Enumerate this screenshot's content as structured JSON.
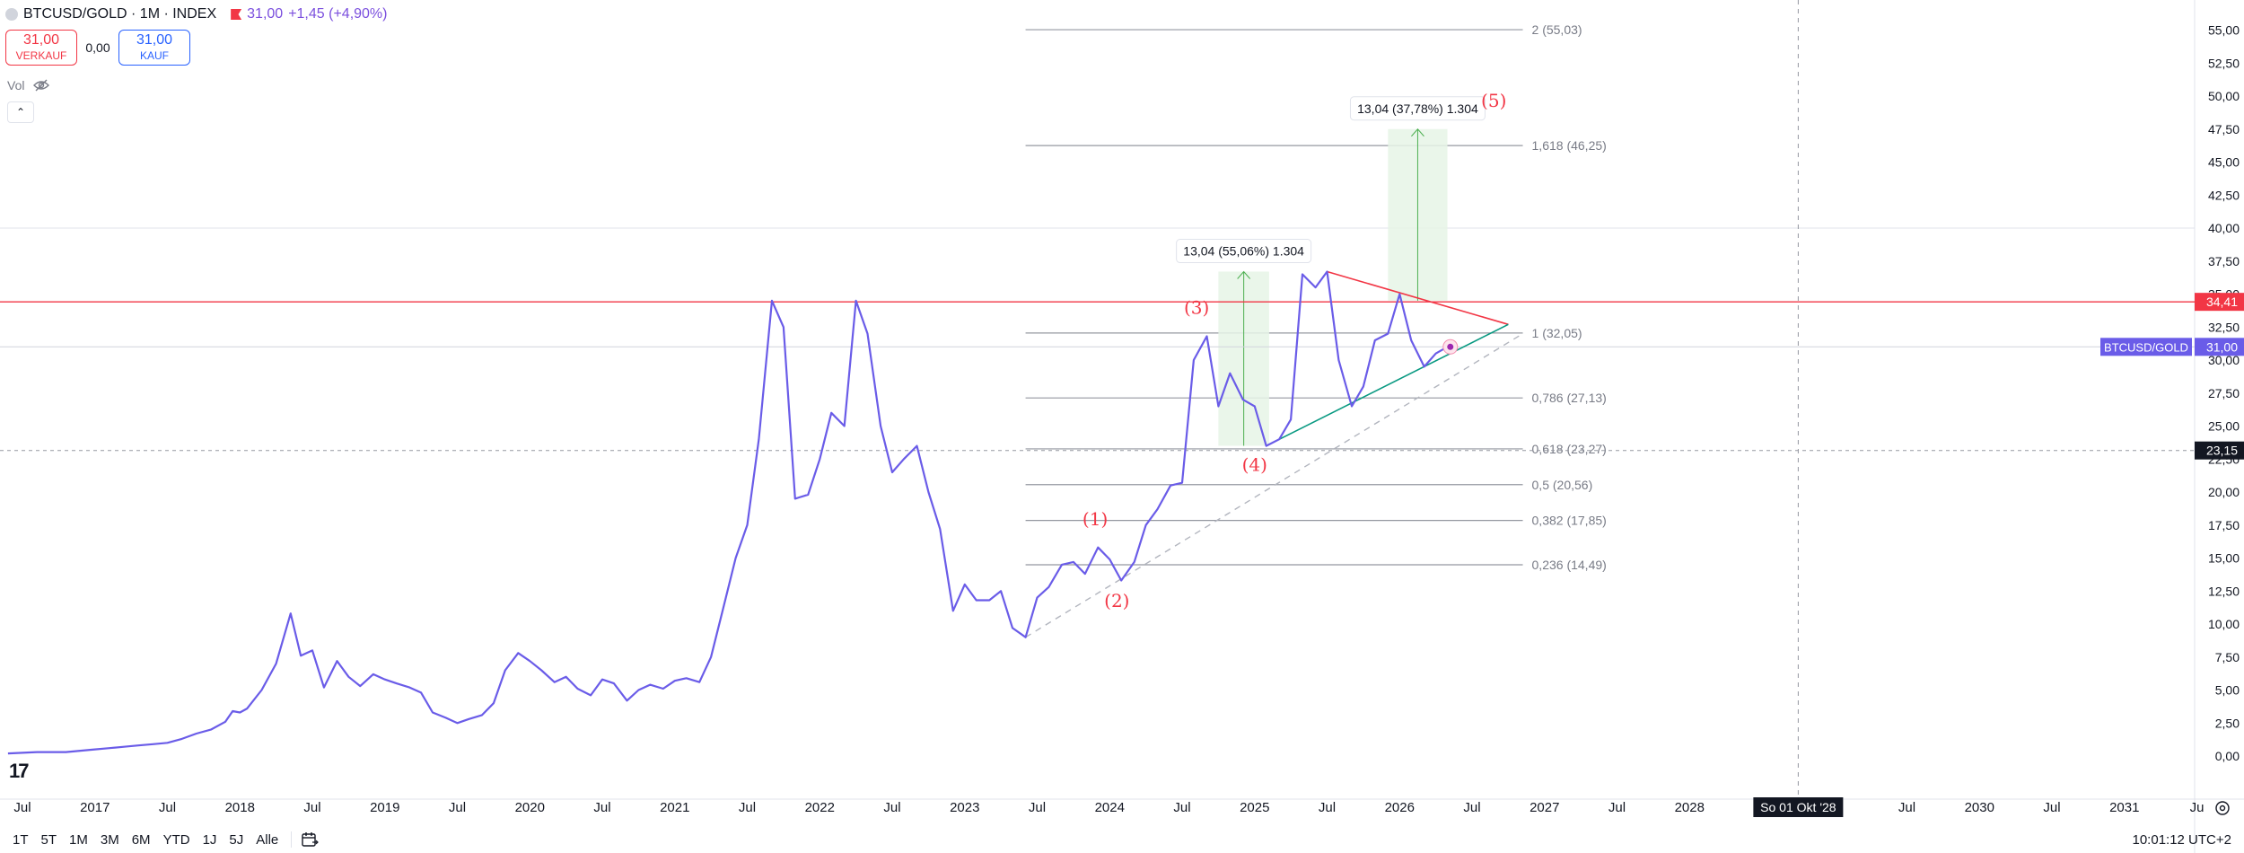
{
  "header": {
    "symbol": "BTCUSD/GOLD · 1M · INDEX",
    "last": "31,00",
    "change": "+1,45 (+4,90%)"
  },
  "trade": {
    "sell_price": "31,00",
    "sell_label": "VERKAUF",
    "spread": "0,00",
    "buy_price": "31,00",
    "buy_label": "KAUF"
  },
  "volume_label": "Vol",
  "range_buttons": [
    "1T",
    "5T",
    "1M",
    "3M",
    "6M",
    "YTD",
    "1J",
    "5J",
    "Alle"
  ],
  "clock": "10:01:12 UTC+2",
  "colors": {
    "price_line": "#6a5ce8",
    "red_line": "#f23645",
    "fib_line": "#9598a1",
    "wave_label": "#f23645",
    "green_box": "#e6f4e6",
    "green_line": "#4caf50",
    "teal_line": "#089981",
    "dashed_line": "#b2b5be"
  },
  "chart_data": {
    "type": "line",
    "title": "BTCUSD/GOLD · 1M · INDEX",
    "y_axis": {
      "min": 0,
      "max": 57.5,
      "ticks": [
        "0,00",
        "2,50",
        "5,00",
        "7,50",
        "10,00",
        "12,50",
        "15,00",
        "17,50",
        "20,00",
        "22,50",
        "25,00",
        "27,50",
        "30,00",
        "32,50",
        "35,00",
        "37,50",
        "40,00",
        "42,50",
        "45,00",
        "47,50",
        "50,00",
        "52,50",
        "55,00"
      ]
    },
    "x_axis": {
      "min": 2016.4,
      "max": 2031.95,
      "ticks": [
        {
          "t": 2016.5,
          "label": "Jul"
        },
        {
          "t": 2017,
          "label": "2017"
        },
        {
          "t": 2017.5,
          "label": "Jul"
        },
        {
          "t": 2018,
          "label": "2018"
        },
        {
          "t": 2018.5,
          "label": "Jul"
        },
        {
          "t": 2019,
          "label": "2019"
        },
        {
          "t": 2019.5,
          "label": "Jul"
        },
        {
          "t": 2020,
          "label": "2020"
        },
        {
          "t": 2020.5,
          "label": "Jul"
        },
        {
          "t": 2021,
          "label": "2021"
        },
        {
          "t": 2021.5,
          "label": "Jul"
        },
        {
          "t": 2022,
          "label": "2022"
        },
        {
          "t": 2022.5,
          "label": "Jul"
        },
        {
          "t": 2023,
          "label": "2023"
        },
        {
          "t": 2023.5,
          "label": "Jul"
        },
        {
          "t": 2024,
          "label": "2024"
        },
        {
          "t": 2024.5,
          "label": "Jul"
        },
        {
          "t": 2025,
          "label": "2025"
        },
        {
          "t": 2025.5,
          "label": "Jul"
        },
        {
          "t": 2026,
          "label": "2026"
        },
        {
          "t": 2026.5,
          "label": "Jul"
        },
        {
          "t": 2027,
          "label": "2027"
        },
        {
          "t": 2027.5,
          "label": "Jul"
        },
        {
          "t": 2028,
          "label": "2028"
        },
        {
          "t": 2029,
          "label": "9"
        },
        {
          "t": 2029.5,
          "label": "Jul"
        },
        {
          "t": 2030,
          "label": "2030"
        },
        {
          "t": 2030.5,
          "label": "Jul"
        },
        {
          "t": 2031,
          "label": "2031"
        },
        {
          "t": 2031.5,
          "label": "Ju"
        }
      ],
      "crosshair": {
        "t": 2028.75,
        "label": "So 01 Okt '28"
      }
    },
    "series": [
      {
        "points": [
          [
            2016.4,
            0.2
          ],
          [
            2016.6,
            0.3
          ],
          [
            2016.8,
            0.3
          ],
          [
            2017.0,
            0.5
          ],
          [
            2017.1,
            0.6
          ],
          [
            2017.2,
            0.7
          ],
          [
            2017.3,
            0.8
          ],
          [
            2017.4,
            0.9
          ],
          [
            2017.5,
            1.0
          ],
          [
            2017.6,
            1.3
          ],
          [
            2017.7,
            1.7
          ],
          [
            2017.8,
            2.0
          ],
          [
            2017.9,
            2.6
          ],
          [
            2017.95,
            3.4
          ],
          [
            2018.0,
            3.3
          ],
          [
            2018.05,
            3.6
          ],
          [
            2018.15,
            5.0
          ],
          [
            2018.25,
            7.0
          ],
          [
            2018.35,
            10.8
          ],
          [
            2018.42,
            7.6
          ],
          [
            2018.5,
            8.0
          ],
          [
            2018.58,
            5.2
          ],
          [
            2018.67,
            7.2
          ],
          [
            2018.75,
            6.0
          ],
          [
            2018.83,
            5.3
          ],
          [
            2018.92,
            6.2
          ],
          [
            2019.0,
            5.8
          ],
          [
            2019.08,
            5.5
          ],
          [
            2019.17,
            5.2
          ],
          [
            2019.25,
            4.8
          ],
          [
            2019.33,
            3.3
          ],
          [
            2019.42,
            2.9
          ],
          [
            2019.5,
            2.5
          ],
          [
            2019.58,
            2.8
          ],
          [
            2019.67,
            3.1
          ],
          [
            2019.75,
            4.0
          ],
          [
            2019.83,
            6.5
          ],
          [
            2019.92,
            7.8
          ],
          [
            2020.0,
            7.2
          ],
          [
            2020.08,
            6.5
          ],
          [
            2020.17,
            5.6
          ],
          [
            2020.25,
            6.0
          ],
          [
            2020.33,
            5.1
          ],
          [
            2020.42,
            4.6
          ],
          [
            2020.5,
            5.8
          ],
          [
            2020.58,
            5.5
          ],
          [
            2020.67,
            4.2
          ],
          [
            2020.75,
            5.0
          ],
          [
            2020.83,
            5.4
          ],
          [
            2020.92,
            5.1
          ],
          [
            2021.0,
            5.7
          ],
          [
            2021.08,
            5.9
          ],
          [
            2021.17,
            5.6
          ],
          [
            2021.25,
            7.5
          ],
          [
            2021.33,
            11.0
          ],
          [
            2021.42,
            15.0
          ],
          [
            2021.5,
            17.5
          ],
          [
            2021.58,
            24.0
          ],
          [
            2021.67,
            34.5
          ],
          [
            2021.75,
            32.5
          ],
          [
            2021.83,
            19.5
          ],
          [
            2021.92,
            19.8
          ],
          [
            2022.0,
            22.5
          ],
          [
            2022.08,
            26.0
          ],
          [
            2022.17,
            25.0
          ],
          [
            2022.25,
            34.5
          ],
          [
            2022.33,
            32.0
          ],
          [
            2022.42,
            25.0
          ],
          [
            2022.5,
            21.5
          ],
          [
            2022.58,
            22.5
          ],
          [
            2022.67,
            23.5
          ],
          [
            2022.75,
            20.0
          ],
          [
            2022.83,
            17.2
          ],
          [
            2022.92,
            11.0
          ],
          [
            2023.0,
            13.0
          ],
          [
            2023.08,
            11.8
          ],
          [
            2023.17,
            11.8
          ],
          [
            2023.25,
            12.5
          ],
          [
            2023.33,
            9.7
          ],
          [
            2023.42,
            9.0
          ],
          [
            2023.5,
            12.0
          ],
          [
            2023.58,
            12.8
          ],
          [
            2023.67,
            14.5
          ],
          [
            2023.75,
            14.7
          ],
          [
            2023.83,
            13.8
          ],
          [
            2023.92,
            15.8
          ],
          [
            2024.0,
            14.9
          ],
          [
            2024.08,
            13.3
          ],
          [
            2024.17,
            14.7
          ],
          [
            2024.25,
            17.5
          ],
          [
            2024.33,
            18.7
          ],
          [
            2024.42,
            20.5
          ],
          [
            2024.5,
            20.7
          ],
          [
            2024.58,
            30.0
          ],
          [
            2024.67,
            31.8
          ],
          [
            2024.75,
            26.5
          ],
          [
            2024.83,
            29.0
          ],
          [
            2024.92,
            27.0
          ],
          [
            2025.0,
            26.5
          ],
          [
            2025.08,
            23.5
          ],
          [
            2025.17,
            24.0
          ],
          [
            2025.25,
            25.5
          ],
          [
            2025.33,
            36.5
          ],
          [
            2025.42,
            35.5
          ],
          [
            2025.5,
            36.7
          ],
          [
            2025.58,
            30.0
          ],
          [
            2025.67,
            26.5
          ],
          [
            2025.75,
            28.0
          ],
          [
            2025.83,
            31.5
          ],
          [
            2025.92,
            32.0
          ],
          [
            2026.0,
            35.0
          ],
          [
            2026.08,
            31.5
          ],
          [
            2026.17,
            29.5
          ],
          [
            2026.25,
            30.5
          ],
          [
            2026.33,
            31.0
          ]
        ]
      }
    ],
    "horizontal_lines": [
      {
        "value": 34.41,
        "label": "34,41"
      },
      {
        "value": 31.0,
        "label": "BTCUSD/GOLD",
        "value_label": "31,00"
      },
      {
        "value": 23.15,
        "label": "23,15"
      }
    ],
    "fib_levels": [
      {
        "value": 55.03,
        "label": "2 (55,03)"
      },
      {
        "value": 46.25,
        "label": "1,618 (46,25)"
      },
      {
        "value": 32.05,
        "label": "1 (32,05)"
      },
      {
        "value": 27.13,
        "label": "0,786 (27,13)"
      },
      {
        "value": 23.27,
        "label": "0,618 (23,27)"
      },
      {
        "value": 20.56,
        "label": "0,5 (20,56)"
      },
      {
        "value": 17.85,
        "label": "0,382 (17,85)"
      },
      {
        "value": 14.49,
        "label": "0,236 (14,49)"
      }
    ],
    "fib_range": {
      "t_start": 2023.42,
      "t_end": 2026.85
    },
    "wave_labels": [
      {
        "t": 2023.9,
        "y": 17.5,
        "text": "(1)"
      },
      {
        "t": 2024.05,
        "y": 11.3,
        "text": "(2)"
      },
      {
        "t": 2024.6,
        "y": 33.5,
        "text": "(3)"
      },
      {
        "t": 2025.0,
        "y": 21.6,
        "text": "(4)"
      },
      {
        "t": 2026.65,
        "y": 49.2,
        "text": "(5)"
      }
    ],
    "measure_boxes": [
      {
        "t1": 2024.75,
        "t2": 2025.1,
        "y1": 23.5,
        "y2": 36.7,
        "label": "13,04 (55,06%) 1.304"
      },
      {
        "t1": 2025.92,
        "t2": 2026.33,
        "y1": 34.5,
        "y2": 47.5,
        "label": "13,04 (37,78%) 1.304"
      }
    ],
    "triangle": {
      "upper": [
        [
          2025.5,
          36.7
        ],
        [
          2026.75,
          32.7
        ]
      ],
      "lower": [
        [
          2025.08,
          23.5
        ],
        [
          2026.75,
          32.7
        ]
      ]
    },
    "dashed_trend": [
      [
        2023.42,
        9.0
      ],
      [
        2026.85,
        32.0
      ]
    ],
    "marker": {
      "t": 2026.35,
      "y": 31.0
    }
  }
}
